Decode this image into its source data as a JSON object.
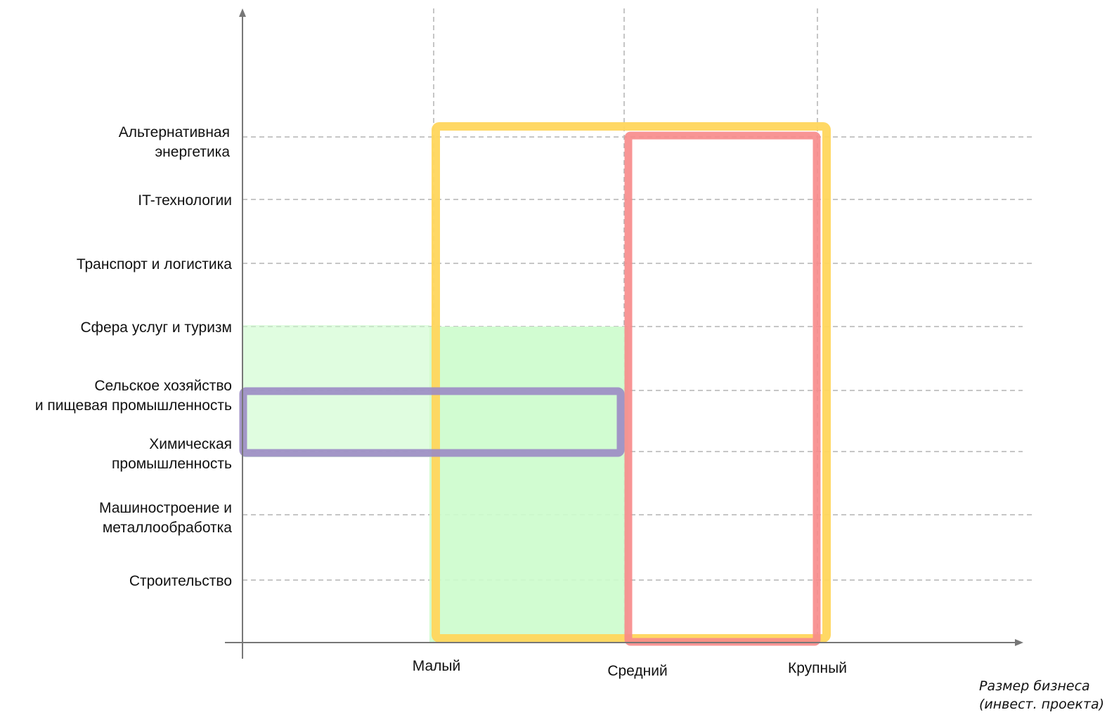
{
  "chart_data": {
    "type": "diagram",
    "y_categories": [
      {
        "id": "alt-energy",
        "lines": [
          "Альтернативная",
          "энергетика"
        ]
      },
      {
        "id": "it",
        "lines": [
          "IT-технологии"
        ]
      },
      {
        "id": "transport",
        "lines": [
          "Транспорт и логистика"
        ]
      },
      {
        "id": "services",
        "lines": [
          "Сфера услуг и туризм"
        ]
      },
      {
        "id": "agro",
        "lines": [
          "Сельское хозяйство",
          "и пищевая промышленность"
        ]
      },
      {
        "id": "chem",
        "lines": [
          "Химическая",
          "промышленность"
        ]
      },
      {
        "id": "machine",
        "lines": [
          "Машиностроение и",
          "металлообработка"
        ]
      },
      {
        "id": "construction",
        "lines": [
          "Строительство"
        ]
      }
    ],
    "x_categories": [
      {
        "id": "small",
        "label": "Малый"
      },
      {
        "id": "medium",
        "label": "Средний"
      },
      {
        "id": "large",
        "label": "Крупный"
      }
    ],
    "x_axis_title": [
      "Размер бизнеса",
      "(инвест. проекта)"
    ],
    "regions": [
      {
        "id": "green-fill",
        "style": "filled",
        "color": "#ccfccc",
        "x_range": [
          "small",
          "medium"
        ],
        "y_range": [
          "construction",
          "services"
        ],
        "extends_x_to_axis_in_band": [
          "chem",
          "services"
        ]
      },
      {
        "id": "yellow-frame",
        "style": "outline",
        "color": "#ffd65c",
        "x_range": [
          "small",
          "large"
        ],
        "y_range": [
          "construction",
          "alt-energy"
        ]
      },
      {
        "id": "red-frame",
        "style": "outline",
        "color": "#f78a8a",
        "x_range": [
          "medium",
          "large"
        ],
        "y_range": [
          "construction",
          "alt-energy"
        ]
      },
      {
        "id": "purple-frame",
        "style": "outline",
        "color": "#9b8bc4",
        "x_range": [
          "axis",
          "medium"
        ],
        "y_range": [
          "chem",
          "agro"
        ]
      }
    ],
    "grid": true
  }
}
